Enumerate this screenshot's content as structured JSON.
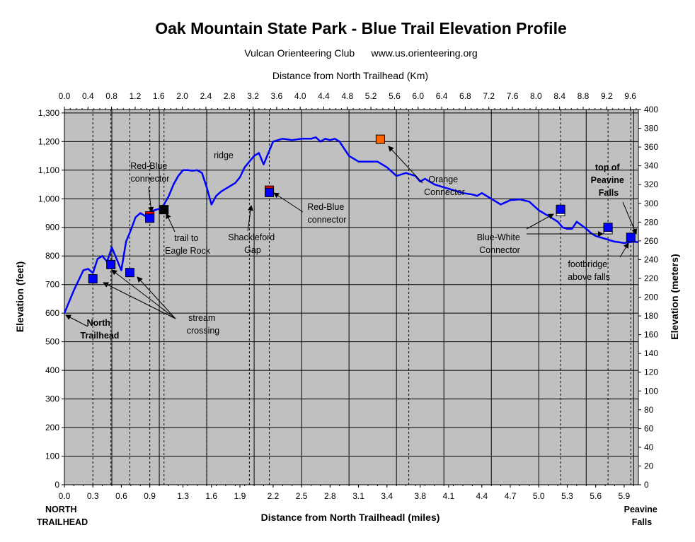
{
  "chart_data": {
    "type": "line",
    "title": "Oak Mountain State Park - Blue Trail Elevation Profile",
    "subtitle": "Vulcan Orienteering Club      www.us.orienteering.org",
    "xlabel": "Distance from North Trailheadl (miles)",
    "x2label": "Distance from North Trailhead (Km)",
    "ylabel": "Elevation (feet)",
    "y2label": "Elevation (meters)",
    "xlim": [
      0,
      6.05
    ],
    "ylim": [
      0,
      1312
    ],
    "y2lim": [
      0,
      400
    ],
    "x_ticks": [
      "0.0",
      "0.3",
      "0.6",
      "0.9",
      "1.3",
      "1.6",
      "1.9",
      "2.2",
      "2.5",
      "2.8",
      "3.1",
      "3.4",
      "3.8",
      "4.1",
      "4.4",
      "4.7",
      "5.0",
      "5.3",
      "5.6",
      "5.9"
    ],
    "x_tick_values": [
      0.0,
      0.3,
      0.6,
      0.9,
      1.25,
      1.55,
      1.85,
      2.2,
      2.5,
      2.8,
      3.1,
      3.4,
      3.75,
      4.05,
      4.4,
      4.7,
      5.0,
      5.3,
      5.6,
      5.9
    ],
    "x2_ticks": [
      "0.0",
      "0.4",
      "0.8",
      "1.2",
      "1.6",
      "2.0",
      "2.4",
      "2.8",
      "3.2",
      "3.6",
      "4.0",
      "4.4",
      "4.8",
      "5.2",
      "5.6",
      "6.0",
      "6.4",
      "6.8",
      "7.2",
      "7.6",
      "8.0",
      "8.4",
      "8.8",
      "9.2",
      "9.6"
    ],
    "y_ticks": [
      "0",
      "100",
      "200",
      "300",
      "400",
      "500",
      "600",
      "700",
      "800",
      "900",
      "1,000",
      "1,100",
      "1,200",
      "1,300"
    ],
    "y2_ticks": [
      "0",
      "20",
      "40",
      "60",
      "80",
      "100",
      "120",
      "140",
      "160",
      "180",
      "200",
      "220",
      "240",
      "260",
      "280",
      "300",
      "320",
      "340",
      "360",
      "380",
      "400"
    ],
    "grid": true,
    "series": [
      {
        "color": "#0000FF",
        "x": [
          0.0,
          0.1,
          0.2,
          0.25,
          0.3,
          0.35,
          0.4,
          0.45,
          0.5,
          0.55,
          0.6,
          0.65,
          0.7,
          0.75,
          0.8,
          0.85,
          0.9,
          0.95,
          1.0,
          1.05,
          1.1,
          1.15,
          1.2,
          1.25,
          1.3,
          1.35,
          1.4,
          1.45,
          1.5,
          1.55,
          1.6,
          1.65,
          1.7,
          1.75,
          1.8,
          1.85,
          1.9,
          1.95,
          2.0,
          2.05,
          2.1,
          2.2,
          2.3,
          2.4,
          2.5,
          2.6,
          2.65,
          2.7,
          2.75,
          2.8,
          2.85,
          2.9,
          3.0,
          3.1,
          3.2,
          3.3,
          3.4,
          3.5,
          3.6,
          3.7,
          3.75,
          3.8,
          3.9,
          4.0,
          4.1,
          4.2,
          4.3,
          4.35,
          4.4,
          4.5,
          4.6,
          4.7,
          4.8,
          4.9,
          5.0,
          5.1,
          5.15,
          5.2,
          5.25,
          5.3,
          5.35,
          5.4,
          5.5,
          5.55,
          5.6,
          5.65,
          5.7,
          5.75,
          5.8,
          5.85,
          5.9,
          5.95,
          6.0,
          6.05
        ],
        "y": [
          600,
          680,
          750,
          755,
          740,
          790,
          800,
          780,
          830,
          790,
          750,
          850,
          890,
          935,
          950,
          940,
          955,
          960,
          965,
          980,
          1010,
          1050,
          1080,
          1100,
          1100,
          1098,
          1100,
          1090,
          1040,
          980,
          1010,
          1025,
          1035,
          1045,
          1055,
          1075,
          1110,
          1130,
          1150,
          1160,
          1120,
          1200,
          1210,
          1205,
          1210,
          1210,
          1215,
          1200,
          1210,
          1205,
          1210,
          1200,
          1150,
          1130,
          1130,
          1130,
          1110,
          1080,
          1090,
          1080,
          1060,
          1070,
          1050,
          1040,
          1030,
          1020,
          1015,
          1010,
          1020,
          1000,
          980,
          995,
          998,
          990,
          960,
          940,
          930,
          920,
          900,
          895,
          895,
          920,
          895,
          880,
          870,
          865,
          860,
          855,
          850,
          848,
          845,
          848,
          850,
          848
        ]
      }
    ],
    "markers": [
      {
        "x": 0.3,
        "y": 720,
        "color": "#0000FF"
      },
      {
        "x": 0.49,
        "y": 770,
        "color": "#0000FF"
      },
      {
        "x": 0.69,
        "y": 742,
        "color": "#0000FF"
      },
      {
        "x": 0.9,
        "y": 940,
        "color": "#FF0000"
      },
      {
        "x": 0.9,
        "y": 932,
        "color": "#0000FF"
      },
      {
        "x": 1.05,
        "y": 962,
        "color": "#000000"
      },
      {
        "x": 2.16,
        "y": 1030,
        "color": "#FF0000"
      },
      {
        "x": 2.16,
        "y": 1022,
        "color": "#0000FF"
      },
      {
        "x": 3.33,
        "y": 1208,
        "color": "#FF6600"
      },
      {
        "x": 5.23,
        "y": 955,
        "color": "#FFFFFF"
      },
      {
        "x": 5.23,
        "y": 963,
        "color": "#0000FF"
      },
      {
        "x": 5.73,
        "y": 892,
        "color": "#FFFFFF"
      },
      {
        "x": 5.73,
        "y": 900,
        "color": "#0000FF"
      },
      {
        "x": 5.97,
        "y": 865,
        "color": "#0000FF"
      }
    ],
    "dashed_lines_x": [
      0.3,
      0.49,
      0.69,
      0.9,
      1.05,
      1.5,
      1.95,
      2.16,
      3.63,
      5.23,
      5.73,
      5.97
    ],
    "annotations": {
      "north_trailhead": "North Trailhead",
      "stream_crossing": "stream crossing",
      "red_blue_1": "Red-Blue connector",
      "trail_eagle": "trail to Eagle Rock",
      "ridge": "ridge",
      "shackleford": "Shackleford Gap",
      "red_blue_2": "Red-Blue connector",
      "orange": "Orange Connector",
      "blue_white": "Blue-White Connector",
      "top_peavine": "top of Peavine Falls",
      "footbridge": "footbridge above falls"
    },
    "end_labels": {
      "left": "NORTH TRAILHEAD",
      "right": "Peavine Falls"
    }
  }
}
